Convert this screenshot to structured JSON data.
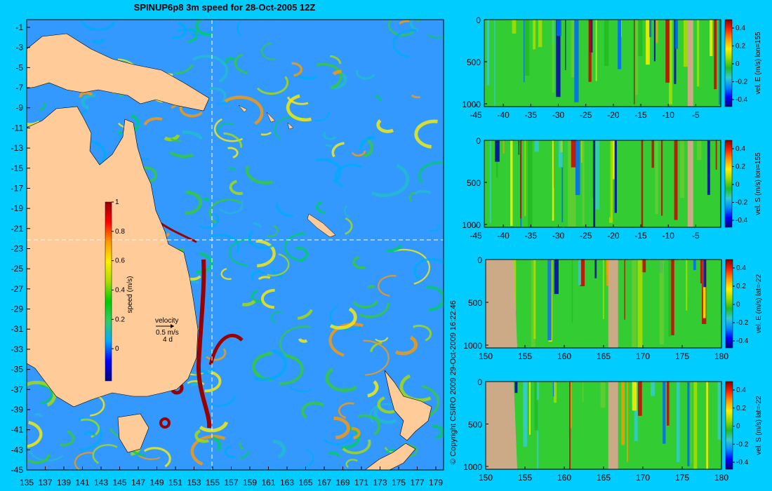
{
  "title": "SPINUP6p8 3m speed for 28-Oct-2005 12Z",
  "copyright": "© Copyright CSIRO 2009   29-Oct-2009 16:22:46",
  "colors": {
    "background": "#00ccff",
    "land": "#ffcc99",
    "section_land": "#ccaa88",
    "ocean_base": "#3399ff",
    "guide_line": "#ffffff"
  },
  "map": {
    "lat_labels": [
      "-1",
      "-3",
      "-5",
      "-7",
      "-9",
      "-11",
      "-13",
      "-15",
      "-17",
      "-19",
      "-21",
      "-23",
      "-25",
      "-27",
      "-29",
      "-31",
      "-33",
      "-35",
      "-37",
      "-39",
      "-41",
      "-43",
      "-45"
    ],
    "lon_labels": [
      "135",
      "137",
      "139",
      "141",
      "143",
      "145",
      "147",
      "149",
      "151",
      "153",
      "155",
      "157",
      "159",
      "161",
      "163",
      "165",
      "167",
      "169",
      "171",
      "173",
      "175",
      "177",
      "179"
    ],
    "colorbar": {
      "ticks": [
        "1",
        "0.8",
        "0.6",
        "0.4",
        "0.2",
        "0"
      ],
      "label": "speed (m/s)",
      "colors": [
        "#000080",
        "#0000ff",
        "#00aaff",
        "#33cc66",
        "#00cc00",
        "#aadd00",
        "#ffee00",
        "#ff9900",
        "#ff0000",
        "#990000"
      ]
    },
    "velocity_key": {
      "title": "velocity",
      "speed": "0.5 m/s",
      "days": "4 d"
    }
  },
  "sections": [
    {
      "label": "vel. E (m/s) lon=155",
      "x_ticks": [
        "-45",
        "-40",
        "-35",
        "-30",
        "-25",
        "-20",
        "-15",
        "-10",
        "-5"
      ],
      "y_ticks": [
        "0",
        "500",
        "1000"
      ],
      "cb_ticks": [
        "0.4",
        "0.2",
        "0",
        "-0.2",
        "-0.4"
      ]
    },
    {
      "label": "vel. S (m/s) lon=155",
      "x_ticks": [
        "-45",
        "-40",
        "-35",
        "-30",
        "-25",
        "-20",
        "-15",
        "-10",
        "-5"
      ],
      "y_ticks": [
        "0",
        "500",
        "1000"
      ],
      "cb_ticks": [
        "0.4",
        "0.2",
        "0",
        "-0.2",
        "-0.4"
      ]
    },
    {
      "label": "vel. E (m/s) lat=-22",
      "x_ticks": [
        "150",
        "155",
        "160",
        "165",
        "170",
        "175",
        "180"
      ],
      "y_ticks": [
        "0",
        "500",
        "1000"
      ],
      "cb_ticks": [
        "0.4",
        "0.2",
        "0",
        "-0.2",
        "-0.4"
      ]
    },
    {
      "label": "vel. S (m/s) lat=-22",
      "x_ticks": [
        "150",
        "155",
        "160",
        "165",
        "170",
        "175",
        "180"
      ],
      "y_ticks": [
        "0",
        "500",
        "1000"
      ],
      "cb_ticks": [
        "0.4",
        "0.2",
        "0",
        "-0.2",
        "-0.4"
      ]
    }
  ],
  "section_colorbar_colors": [
    "#000080",
    "#0000ff",
    "#0088ff",
    "#33cccc",
    "#22bb22",
    "#99dd00",
    "#ffee00",
    "#ff9900",
    "#ff2200",
    "#880000"
  ]
}
